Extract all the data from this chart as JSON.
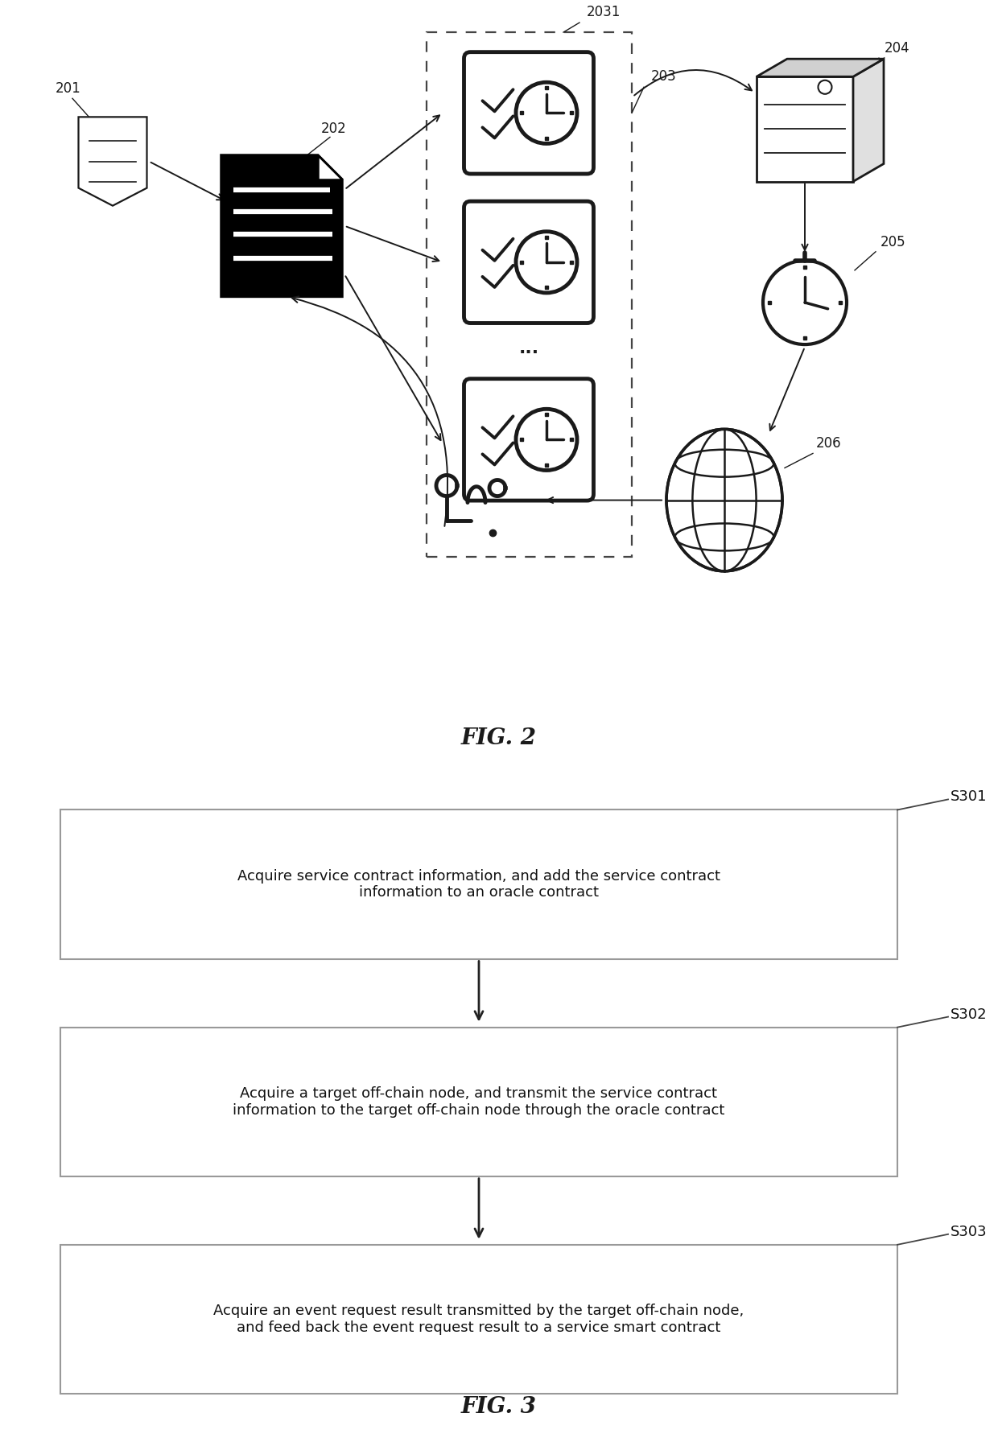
{
  "fig_width": 12.4,
  "fig_height": 17.97,
  "bg_color": "#ffffff",
  "fig2_label": "FIG. 2",
  "fig3_label": "FIG. 3",
  "flow_boxes": [
    {
      "id": "S301",
      "label": "S301",
      "text": "Acquire service contract information, and add the service contract\ninformation to an oracle contract"
    },
    {
      "id": "S302",
      "label": "S302",
      "text": "Acquire a target off-chain node, and transmit the service contract\ninformation to the target off-chain node through the oracle contract"
    },
    {
      "id": "S303",
      "label": "S303",
      "text": "Acquire an event request result transmitted by the target off-chain node,\nand feed back the event request result to a service smart contract"
    }
  ]
}
